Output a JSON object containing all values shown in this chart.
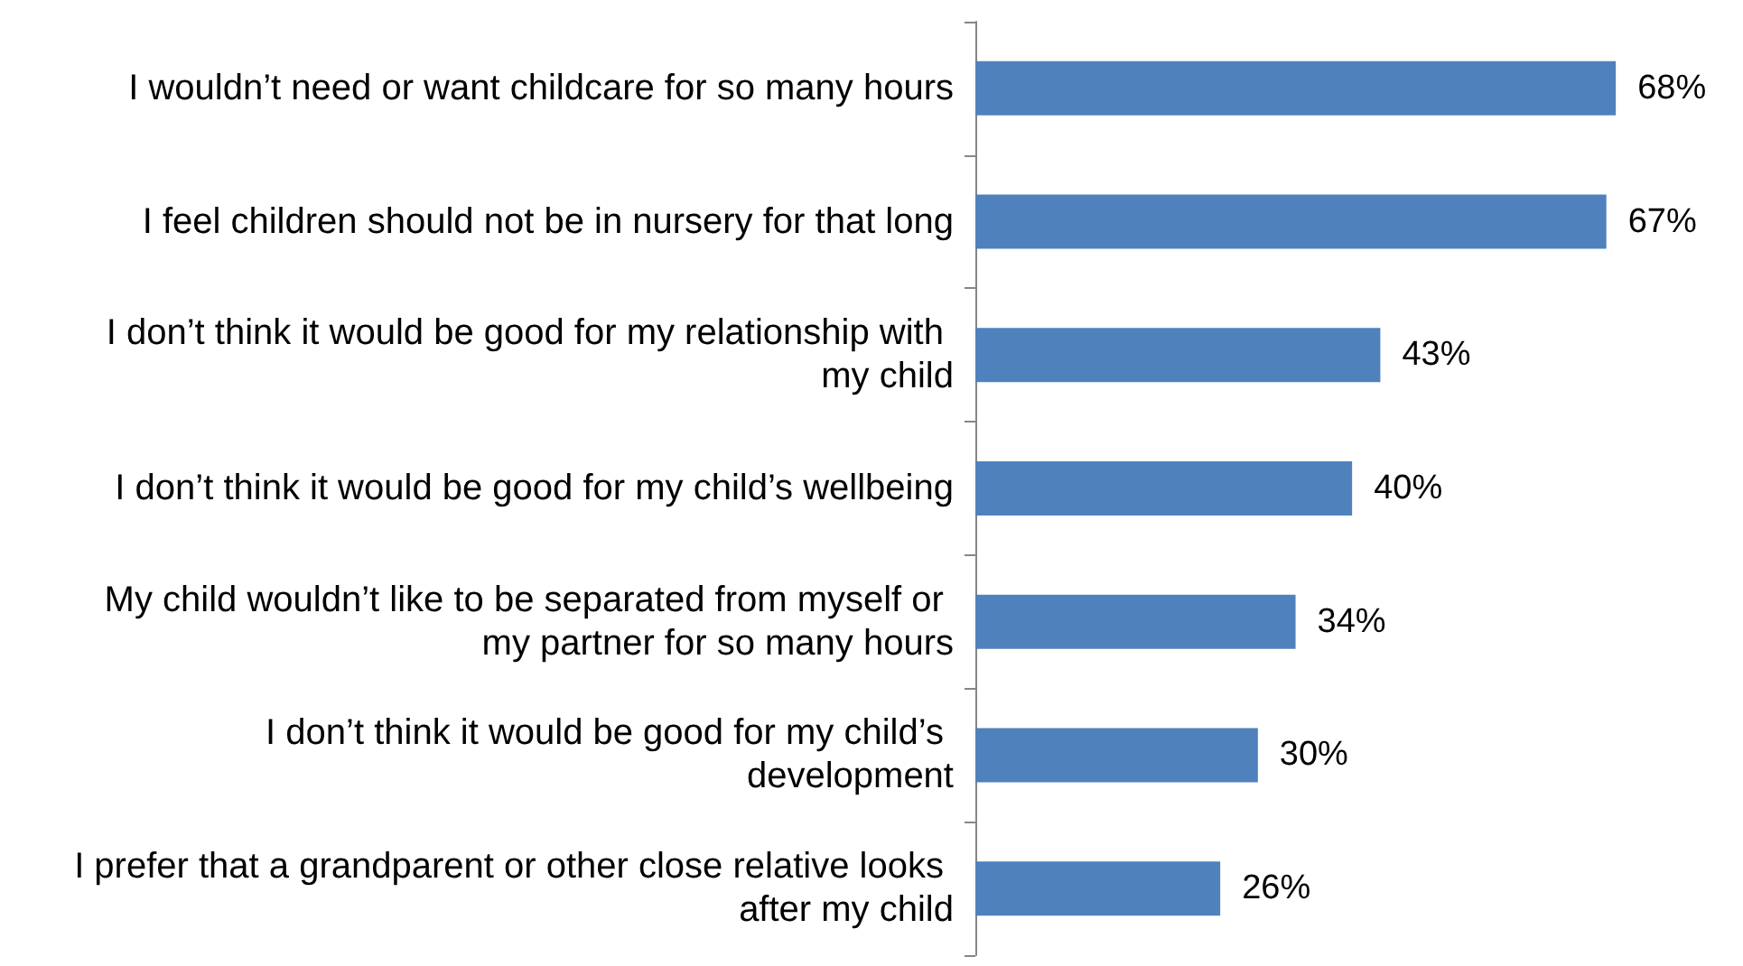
{
  "chart_data": {
    "type": "bar",
    "orientation": "horizontal",
    "tick_labels": "y",
    "categories": [
      "I wouldn’t need or want childcare for so many hours",
      "I feel children should not be in nursery for that long",
      "I don’t think it would be good for my relationship with my child",
      "I don’t think it would be good for my child’s wellbeing",
      "My child wouldn’t like to be separated from myself or my partner for so many hours",
      "I don’t think it would be good for my child’s development",
      "I prefer that a grandparent or other close relative looks after my child"
    ],
    "values": [
      68,
      67,
      43,
      40,
      34,
      30,
      26
    ],
    "value_labels": [
      "68%",
      "67%",
      "43%",
      "40%",
      "34%",
      "30%",
      "26%"
    ],
    "color": "#4f81bd"
  }
}
